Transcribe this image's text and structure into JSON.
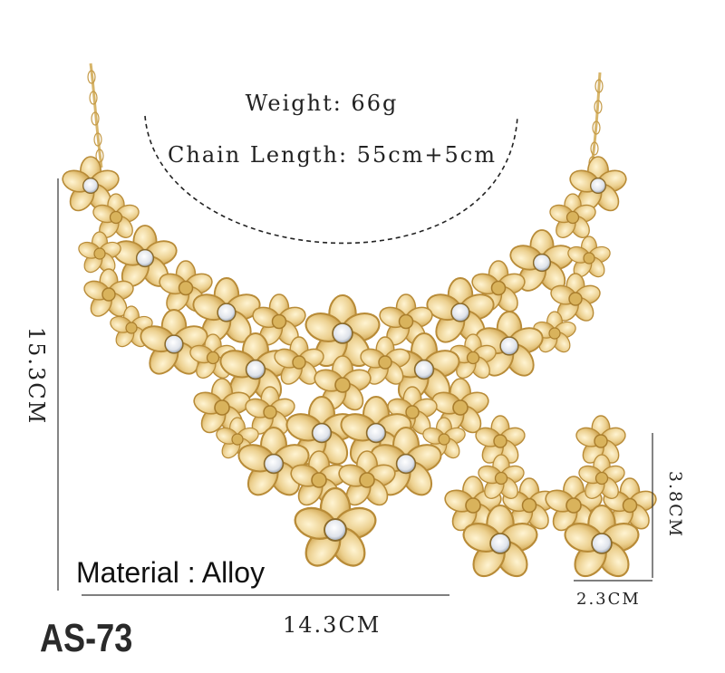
{
  "specs": {
    "weight": "Weight: 66g",
    "chain_length": "Chain Length: 55cm+5cm",
    "material": "Material : Alloy"
  },
  "dimensions": {
    "necklace_height": "15.3CM",
    "necklace_width": "14.3CM",
    "earring_height": "3.8CM",
    "earring_width": "2.3CM"
  },
  "product_code": "AS-73",
  "colors": {
    "gold": "#e8c77a",
    "gold_dark": "#c9a14e",
    "gold_light": "#fbecc0",
    "crystal": "#f4f6fa",
    "ink": "#222222"
  }
}
